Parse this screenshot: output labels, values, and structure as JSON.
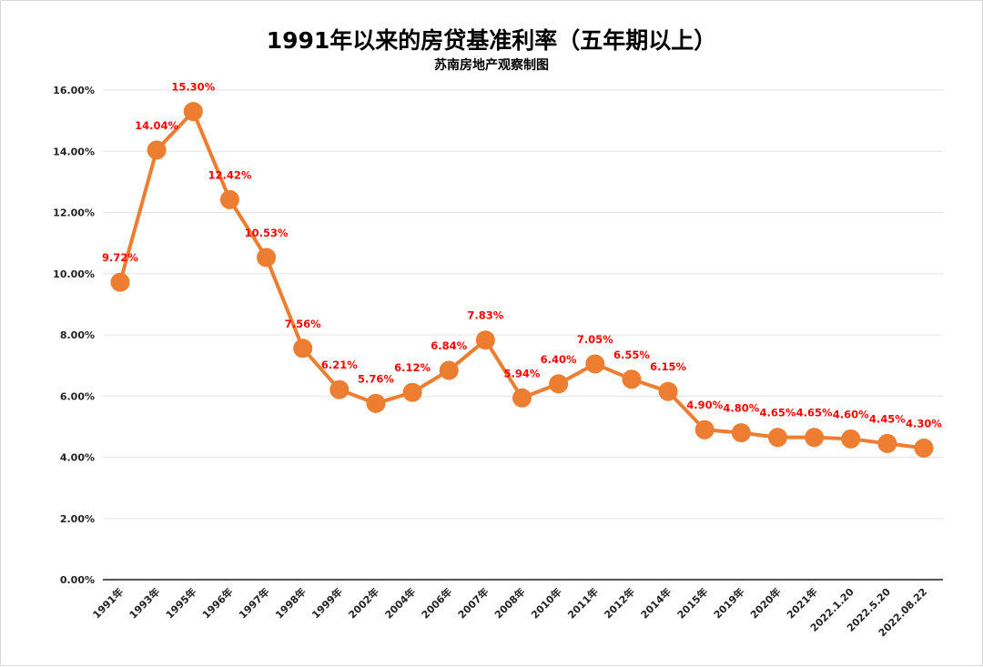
{
  "chart_data": {
    "type": "line",
    "title": "1991年以来的房贷基准利率（五年期以上）",
    "subtitle": "苏南房地产观察制图",
    "categories": [
      "1991年",
      "1993年",
      "1995年",
      "1996年",
      "1997年",
      "1998年",
      "1999年",
      "2002年",
      "2004年",
      "2006年",
      "2007年",
      "2008年",
      "2010年",
      "2011年",
      "2012年",
      "2014年",
      "2015年",
      "2019年",
      "2020年",
      "2021年",
      "2022.1.20",
      "2022.5.20",
      "2022.08.22"
    ],
    "values": [
      9.72,
      14.04,
      15.3,
      12.42,
      10.53,
      7.56,
      6.21,
      5.76,
      6.12,
      6.84,
      7.83,
      5.94,
      6.4,
      7.05,
      6.55,
      6.15,
      4.9,
      4.8,
      4.65,
      4.65,
      4.6,
      4.45,
      4.3
    ],
    "data_labels": [
      "9.72%",
      "14.04%",
      "15.30%",
      "12.42%",
      "10.53%",
      "7.56%",
      "6.21%",
      "5.76%",
      "6.12%",
      "6.84%",
      "7.83%",
      "5.94%",
      "6.40%",
      "7.05%",
      "6.55%",
      "6.15%",
      "4.90%",
      "4.80%",
      "4.65%",
      "4.65%",
      "4.60%",
      "4.45%",
      "4.30%"
    ],
    "yticks": [
      "0.00%",
      "2.00%",
      "4.00%",
      "6.00%",
      "8.00%",
      "10.00%",
      "12.00%",
      "14.00%",
      "16.00%"
    ],
    "ylim": [
      0,
      16
    ],
    "xlabel": "",
    "ylabel": "",
    "grid": true,
    "legend": "none",
    "colors": {
      "line": "#ED7D31",
      "marker": "#ED7D31",
      "data_label": "#FF0000"
    }
  }
}
